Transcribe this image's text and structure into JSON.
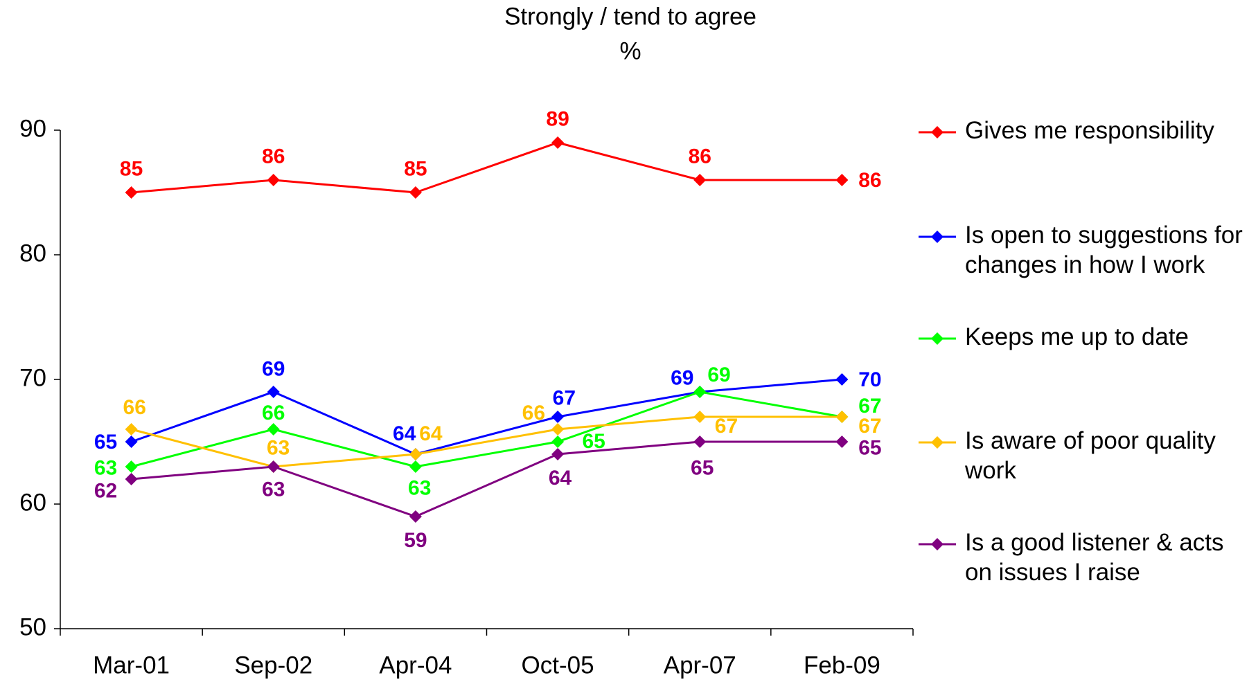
{
  "chart_data": {
    "type": "line",
    "title": "Strongly / tend to agree",
    "subtitle": "%",
    "categories": [
      "Mar-01",
      "Sep-02",
      "Apr-04",
      "Oct-05",
      "Apr-07",
      "Feb-09"
    ],
    "series": [
      {
        "name": "Gives me responsibility",
        "color": "#ff0000",
        "values": [
          85,
          86,
          85,
          89,
          86,
          86
        ]
      },
      {
        "name": "Is open to suggestions for changes in how I work",
        "color": "#0000ff",
        "values": [
          65,
          69,
          64,
          67,
          69,
          70
        ]
      },
      {
        "name": "Keeps me up to date",
        "color": "#00ff00",
        "values": [
          63,
          66,
          63,
          65,
          69,
          67
        ]
      },
      {
        "name": "Is aware of poor quality work",
        "color": "#ffc000",
        "values": [
          66,
          63,
          64,
          66,
          67,
          67
        ]
      },
      {
        "name": "Is a good listener & acts on issues I raise",
        "color": "#800080",
        "values": [
          62,
          63,
          59,
          64,
          65,
          65
        ]
      }
    ],
    "ylim": [
      50,
      90
    ],
    "yticks": [
      50,
      60,
      70,
      80,
      90
    ],
    "grid": false,
    "legend": "right"
  }
}
